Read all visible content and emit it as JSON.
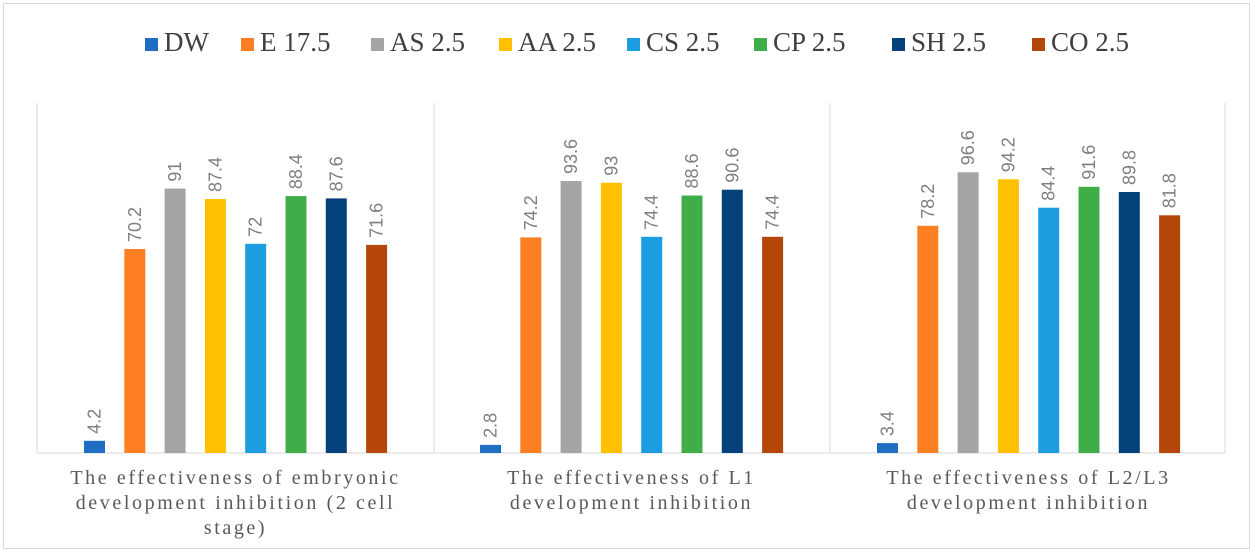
{
  "chart_data": {
    "type": "bar",
    "categories": [
      [
        "The effectiveness of embryonic",
        "development inhibition (2 cell",
        "stage)"
      ],
      [
        "The effectiveness of L1",
        "development inhibition"
      ],
      [
        "The effectiveness of L2/L3",
        "development inhibition"
      ]
    ],
    "series": [
      {
        "name": "DW",
        "color": "#1f6ec4",
        "values": [
          4.2,
          2.8,
          3.4
        ]
      },
      {
        "name": "E 17.5",
        "color": "#fd7f22",
        "values": [
          70.2,
          74.2,
          78.2
        ]
      },
      {
        "name": "AS 2.5",
        "color": "#a5a5a5",
        "values": [
          91,
          93.6,
          96.6
        ]
      },
      {
        "name": "AA 2.5",
        "color": "#fec000",
        "values": [
          87.4,
          93,
          94.2
        ]
      },
      {
        "name": "CS 2.5",
        "color": "#1b9de0",
        "values": [
          72,
          74.4,
          84.4
        ]
      },
      {
        "name": "CP 2.5",
        "color": "#3fae48",
        "values": [
          88.4,
          88.6,
          91.6
        ]
      },
      {
        "name": "SH 2.5",
        "color": "#04417a",
        "values": [
          87.6,
          90.6,
          89.8
        ]
      },
      {
        "name": "CO 2.5",
        "color": "#b5460a",
        "values": [
          71.6,
          74.4,
          81.8
        ]
      }
    ],
    "ylim": [
      0,
      100
    ],
    "grid": false,
    "legend_position": "top",
    "data_labels": true
  }
}
